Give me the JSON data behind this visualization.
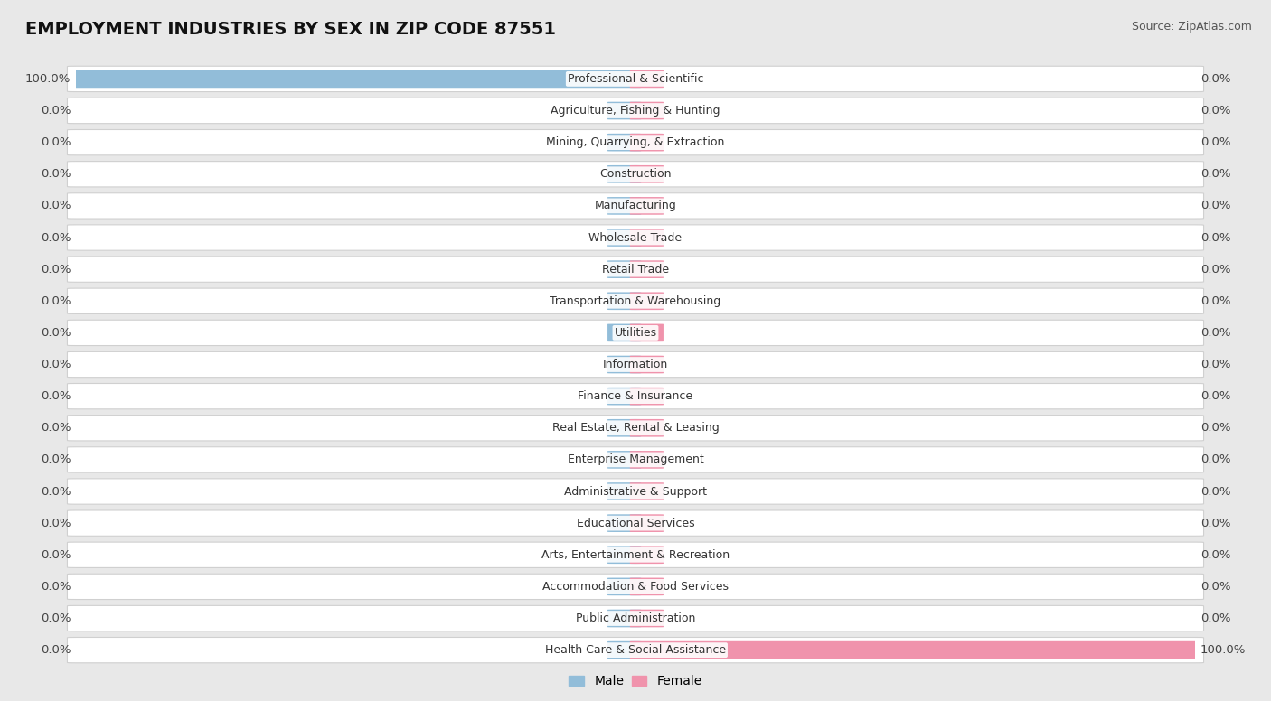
{
  "title": "EMPLOYMENT INDUSTRIES BY SEX IN ZIP CODE 87551",
  "source": "Source: ZipAtlas.com",
  "industries": [
    "Professional & Scientific",
    "Agriculture, Fishing & Hunting",
    "Mining, Quarrying, & Extraction",
    "Construction",
    "Manufacturing",
    "Wholesale Trade",
    "Retail Trade",
    "Transportation & Warehousing",
    "Utilities",
    "Information",
    "Finance & Insurance",
    "Real Estate, Rental & Leasing",
    "Enterprise Management",
    "Administrative & Support",
    "Educational Services",
    "Arts, Entertainment & Recreation",
    "Accommodation & Food Services",
    "Public Administration",
    "Health Care & Social Assistance"
  ],
  "male_pct": [
    100.0,
    0.0,
    0.0,
    0.0,
    0.0,
    0.0,
    0.0,
    0.0,
    0.0,
    0.0,
    0.0,
    0.0,
    0.0,
    0.0,
    0.0,
    0.0,
    0.0,
    0.0,
    0.0
  ],
  "female_pct": [
    0.0,
    0.0,
    0.0,
    0.0,
    0.0,
    0.0,
    0.0,
    0.0,
    0.0,
    0.0,
    0.0,
    0.0,
    0.0,
    0.0,
    0.0,
    0.0,
    0.0,
    0.0,
    100.0
  ],
  "male_color": "#92bdd9",
  "female_color": "#f093ac",
  "bg_color": "#e8e8e8",
  "row_bg_color": "#ffffff",
  "title_fontsize": 14,
  "label_fontsize": 9.5,
  "industry_fontsize": 9,
  "legend_fontsize": 10,
  "source_fontsize": 9,
  "stub_pct": 4.0
}
